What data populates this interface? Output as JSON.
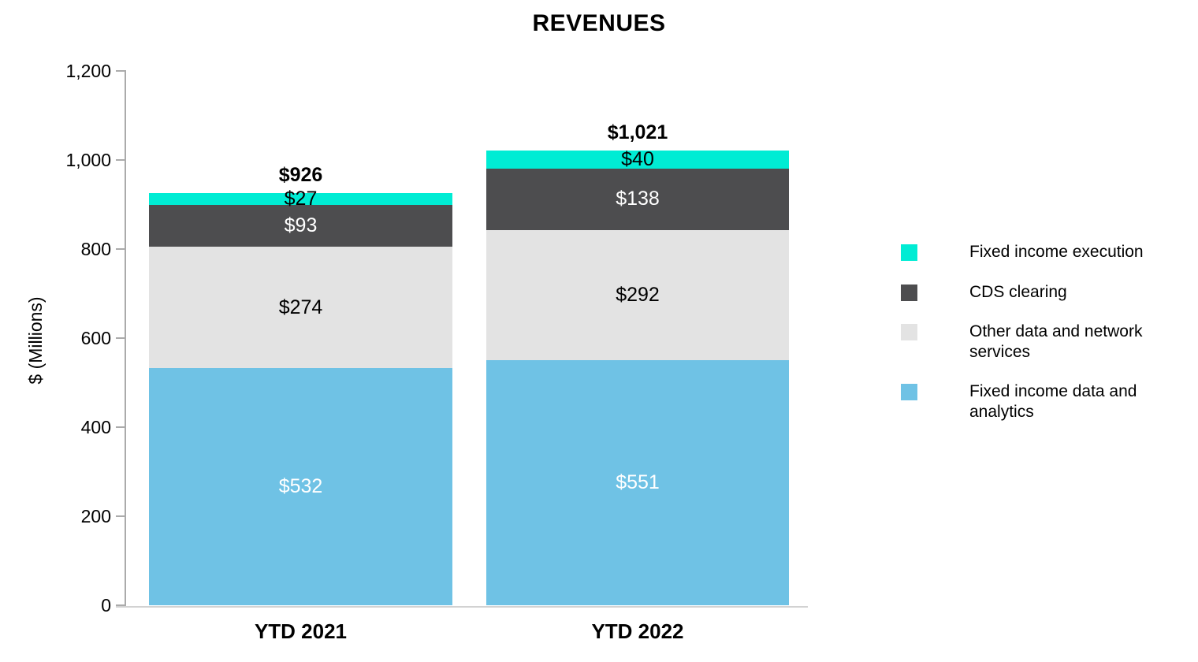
{
  "title": "REVENUES",
  "chart_data": {
    "type": "bar",
    "stacked": true,
    "title": "REVENUES",
    "xlabel": "",
    "ylabel": "$ (Millions)",
    "ylim": [
      0,
      1200
    ],
    "y_ticks": [
      "1,200",
      "1,000",
      "800",
      "600",
      "400",
      "200",
      "0"
    ],
    "grid": false,
    "legend_position": "right",
    "categories": [
      "YTD 2021",
      "YTD 2022"
    ],
    "series": [
      {
        "name": "Fixed income execution",
        "color": "#00ecd4",
        "label_text_color": "#000000",
        "values": [
          27,
          40
        ],
        "data_labels": [
          "$27",
          "$40"
        ]
      },
      {
        "name": "CDS clearing",
        "color": "#4d4d4f",
        "label_text_color": "#ffffff",
        "values": [
          93,
          138
        ],
        "data_labels": [
          "$93",
          "$138"
        ]
      },
      {
        "name": "Other data and network services",
        "color": "#e3e3e3",
        "label_text_color": "#000000",
        "values": [
          274,
          292
        ],
        "data_labels": [
          "$274",
          "$292"
        ]
      },
      {
        "name": "Fixed income data and analytics",
        "color": "#6fc2e5",
        "label_text_color": "#ffffff",
        "values": [
          532,
          551
        ],
        "data_labels": [
          "$532",
          "$551"
        ]
      }
    ],
    "totals": [
      926,
      1021
    ],
    "total_labels": [
      "$926",
      "$1,021"
    ]
  }
}
